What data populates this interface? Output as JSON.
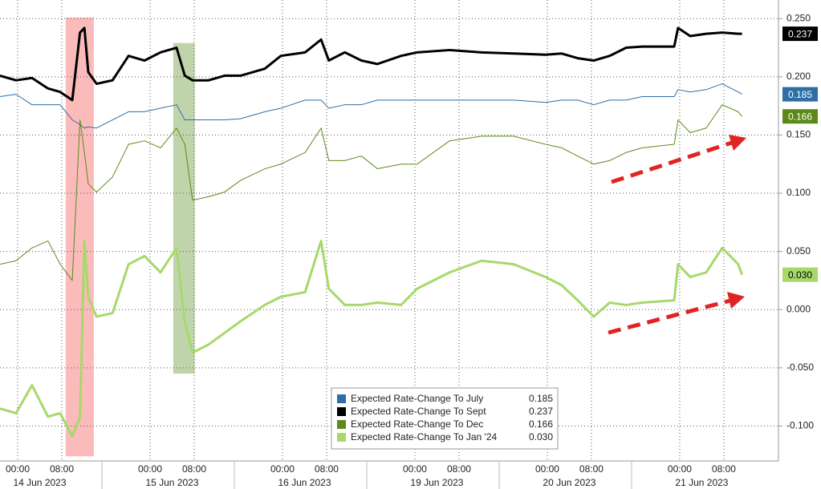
{
  "chart_data": {
    "type": "line",
    "x": [
      -3.2,
      -0.3,
      2.6,
      5.5,
      7.7,
      9.9,
      11.3,
      12.1,
      12.8,
      14.3,
      17.2,
      20.1,
      23,
      25.9,
      28.8,
      30.3,
      31.7,
      34.6,
      37.5,
      40.4,
      44.8,
      47.7,
      52.1,
      55,
      56.4,
      59.3,
      62.3,
      65.2,
      69.5,
      72.4,
      78.3,
      84.1,
      89.9,
      95.7,
      98.6,
      101.5,
      104.4,
      107.3,
      110.3,
      113.2,
      119,
      119.7,
      121.9,
      124.8,
      127.7,
      130.6,
      131.3
    ],
    "series": [
      {
        "name": "Expected Rate-Change To July",
        "color": "#2e6ea6",
        "width": 1,
        "last_label": "0.185",
        "values": [
          0.183,
          0.185,
          0.176,
          0.176,
          0.176,
          0.163,
          0.159,
          0.156,
          0.157,
          0.156,
          0.163,
          0.17,
          0.17,
          0.173,
          0.176,
          0.163,
          0.163,
          0.163,
          0.163,
          0.164,
          0.17,
          0.173,
          0.18,
          0.18,
          0.173,
          0.176,
          0.176,
          0.18,
          0.18,
          0.18,
          0.18,
          0.18,
          0.18,
          0.178,
          0.18,
          0.18,
          0.176,
          0.18,
          0.18,
          0.183,
          0.183,
          0.189,
          0.187,
          0.189,
          0.194,
          0.187,
          0.185
        ]
      },
      {
        "name": "Expected Rate-Change To Sept",
        "color": "#000000",
        "width": 3,
        "last_label": "0.237",
        "values": [
          0.201,
          0.197,
          0.199,
          0.19,
          0.187,
          0.18,
          0.238,
          0.242,
          0.204,
          0.194,
          0.197,
          0.218,
          0.214,
          0.221,
          0.225,
          0.201,
          0.197,
          0.197,
          0.201,
          0.201,
          0.207,
          0.218,
          0.221,
          0.232,
          0.214,
          0.221,
          0.214,
          0.211,
          0.218,
          0.221,
          0.223,
          0.221,
          0.22,
          0.219,
          0.22,
          0.216,
          0.214,
          0.218,
          0.225,
          0.226,
          0.226,
          0.242,
          0.235,
          0.237,
          0.238,
          0.237,
          0.237
        ]
      },
      {
        "name": "Expected Rate-Change To Dec",
        "color": "#5b8a1a",
        "width": 1,
        "last_label": "0.166",
        "values": [
          0.039,
          0.042,
          0.053,
          0.059,
          0.039,
          0.025,
          0.163,
          0.135,
          0.108,
          0.101,
          0.114,
          0.142,
          0.145,
          0.139,
          0.156,
          0.142,
          0.094,
          0.097,
          0.101,
          0.111,
          0.121,
          0.125,
          0.135,
          0.156,
          0.128,
          0.128,
          0.132,
          0.121,
          0.125,
          0.125,
          0.145,
          0.149,
          0.149,
          0.142,
          0.139,
          0.132,
          0.125,
          0.128,
          0.135,
          0.139,
          0.142,
          0.163,
          0.152,
          0.156,
          0.176,
          0.17,
          0.166
        ]
      },
      {
        "name": "Expected Rate-Change To Jan '24",
        "color": "#a6d96a",
        "width": 3,
        "last_label": "0.030",
        "values": [
          -0.085,
          -0.089,
          -0.065,
          -0.092,
          -0.089,
          -0.109,
          -0.092,
          0.059,
          0.011,
          -0.006,
          -0.003,
          0.039,
          0.046,
          0.032,
          0.053,
          -0.01,
          -0.037,
          -0.03,
          -0.02,
          -0.01,
          0.004,
          0.011,
          0.015,
          0.059,
          0.018,
          0.004,
          0.004,
          0.006,
          0.004,
          0.018,
          0.032,
          0.042,
          0.039,
          0.028,
          0.021,
          0.008,
          -0.006,
          0.006,
          0.004,
          0.006,
          0.008,
          0.039,
          0.028,
          0.032,
          0.053,
          0.039,
          0.03
        ]
      }
    ],
    "xlim": [
      -3.2,
      137.9
    ],
    "ylim": [
      -0.13,
      0.266
    ],
    "xticks": [
      {
        "value": 0,
        "label": "00:00"
      },
      {
        "value": 8,
        "label": "08:00"
      },
      {
        "value": 24,
        "label": "00:00"
      },
      {
        "value": 32,
        "label": "08:00"
      },
      {
        "value": 48,
        "label": "00:00"
      },
      {
        "value": 56,
        "label": "08:00"
      },
      {
        "value": 72,
        "label": "00:00"
      },
      {
        "value": 80,
        "label": "08:00"
      },
      {
        "value": 96,
        "label": "00:00"
      },
      {
        "value": 104,
        "label": "08:00"
      },
      {
        "value": 120,
        "label": "00:00"
      },
      {
        "value": 128,
        "label": "08:00"
      }
    ],
    "xdates": [
      {
        "value": 4,
        "label": "14 Jun 2023"
      },
      {
        "value": 28,
        "label": "15 Jun 2023"
      },
      {
        "value": 52,
        "label": "16 Jun 2023"
      },
      {
        "value": 76,
        "label": "19 Jun 2023"
      },
      {
        "value": 100,
        "label": "20 Jun 2023"
      },
      {
        "value": 124,
        "label": "21 Jun 2023"
      }
    ],
    "yticks": [
      {
        "value": 0.25,
        "label": "0.250"
      },
      {
        "value": 0.2,
        "label": "0.200"
      },
      {
        "value": 0.15,
        "label": "0.150"
      },
      {
        "value": 0.1,
        "label": "0.100"
      },
      {
        "value": 0.05,
        "label": "0.050"
      },
      {
        "value": 0,
        "label": "0.000"
      },
      {
        "value": -0.05,
        "label": "-0.050"
      },
      {
        "value": -0.1,
        "label": "-0.100"
      }
    ],
    "grid": true,
    "highlights": [
      {
        "x": [
          8.7,
          13.8
        ],
        "y": [
          -0.126,
          0.251
        ],
        "color": "rgba(250,120,120,0.5)"
      },
      {
        "x": [
          28.2,
          32.1
        ],
        "y": [
          -0.055,
          0.229
        ],
        "color": "rgba(130,170,90,0.5)"
      }
    ]
  }
}
